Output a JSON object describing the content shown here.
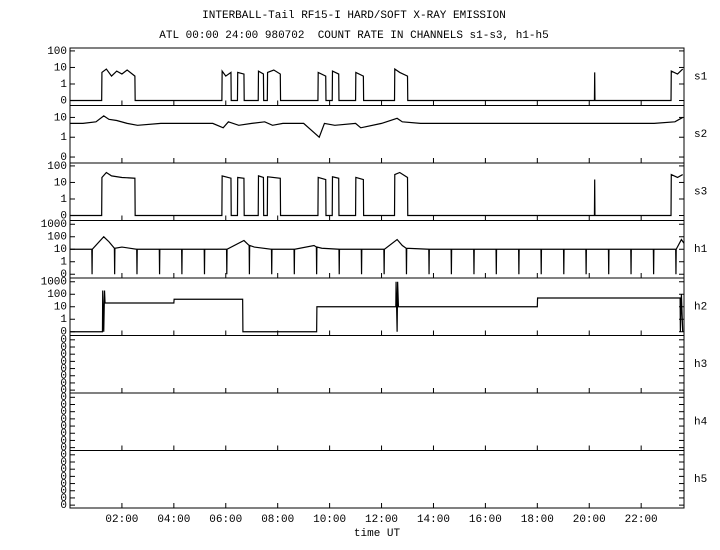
{
  "chart_data": {
    "type": "stacked_panels",
    "title": "INTERBALL-Tail RF15-I HARD/SOFT X-RAY EMISSION",
    "subtitle": "ATL 00:00 24:00 980702  COUNT RATE IN CHANNELS s1-s3, h1-h5",
    "xlabel": "time UT",
    "xlim": [
      0,
      23.65
    ],
    "xticks": [
      {
        "value": 2,
        "label": "02:00"
      },
      {
        "value": 4,
        "label": "04:00"
      },
      {
        "value": 6,
        "label": "06:00"
      },
      {
        "value": 8,
        "label": "08:00"
      },
      {
        "value": 10,
        "label": "10:00"
      },
      {
        "value": 12,
        "label": "12:00"
      },
      {
        "value": 14,
        "label": "14:00"
      },
      {
        "value": 16,
        "label": "16:00"
      },
      {
        "value": 18,
        "label": "18:00"
      },
      {
        "value": 20,
        "label": "20:00"
      },
      {
        "value": 22,
        "label": "22:00"
      }
    ],
    "color": "#000000",
    "panels": [
      {
        "label": "s1",
        "log": true,
        "ylim": [
          0.05,
          150
        ],
        "yticks": [
          {
            "value": 0.1,
            "label": "0"
          },
          1,
          10,
          100
        ],
        "x": [
          0,
          1.22,
          1.23,
          1.4,
          1.6,
          1.8,
          2.0,
          2.2,
          2.5,
          2.51,
          5.85,
          5.86,
          6.0,
          6.2,
          6.21,
          6.45,
          6.46,
          6.7,
          6.71,
          7.25,
          7.26,
          7.45,
          7.46,
          7.6,
          7.61,
          7.85,
          8.1,
          8.11,
          9.55,
          9.56,
          9.85,
          9.86,
          10.1,
          10.11,
          10.35,
          10.36,
          11.0,
          11.01,
          11.3,
          11.31,
          12.5,
          12.51,
          12.7,
          13.0,
          13.01,
          20.2,
          20.21,
          20.22,
          23.15,
          23.16,
          23.4,
          23.6
        ],
        "values": [
          0.1,
          0.1,
          5,
          8,
          3,
          6,
          4,
          7,
          3,
          0.1,
          0.1,
          6,
          3,
          5,
          0.1,
          0.1,
          5,
          4,
          0.1,
          0.1,
          6,
          4,
          0.1,
          0.1,
          5,
          7,
          4,
          0.1,
          0.1,
          5,
          3,
          0.1,
          0.1,
          6,
          4,
          0.1,
          0.1,
          5,
          3,
          0.1,
          0.1,
          8,
          5,
          3,
          0.1,
          0.1,
          5,
          0.1,
          0.1,
          6,
          4,
          8
        ]
      },
      {
        "label": "s2",
        "log": true,
        "ylim": [
          0.05,
          40
        ],
        "yticks": [
          {
            "value": 0.1,
            "label": "0"
          },
          1,
          10
        ],
        "x": [
          0,
          0.5,
          1.0,
          1.3,
          1.5,
          1.8,
          2.2,
          2.6,
          3.5,
          4.5,
          5.5,
          5.9,
          6.1,
          6.5,
          7.0,
          7.5,
          7.8,
          8.2,
          9.0,
          9.6,
          9.8,
          10.2,
          11.0,
          11.2,
          12.0,
          12.6,
          12.8,
          13.5,
          15,
          17,
          19,
          21,
          22.5,
          23.3,
          23.6
        ],
        "values": [
          5,
          5,
          6,
          12,
          8,
          7,
          5,
          4,
          5,
          5,
          5,
          3,
          6,
          4,
          5,
          6,
          4,
          5,
          5,
          1,
          5,
          4,
          5,
          3,
          5,
          9,
          6,
          5,
          5,
          5,
          5,
          5,
          5,
          6,
          10
        ]
      },
      {
        "label": "s3",
        "log": true,
        "ylim": [
          0.05,
          150
        ],
        "yticks": [
          {
            "value": 0.1,
            "label": "0"
          },
          1,
          10,
          100
        ],
        "x": [
          0,
          1.22,
          1.23,
          1.4,
          1.6,
          2.0,
          2.5,
          2.51,
          5.85,
          5.86,
          6.2,
          6.21,
          6.45,
          6.46,
          6.7,
          6.71,
          7.25,
          7.26,
          7.45,
          7.46,
          7.6,
          7.61,
          8.1,
          8.11,
          9.55,
          9.56,
          9.85,
          9.86,
          10.1,
          10.11,
          10.35,
          10.36,
          11.0,
          11.01,
          11.3,
          11.31,
          12.5,
          12.51,
          12.7,
          13.0,
          13.01,
          20.2,
          20.21,
          20.22,
          23.15,
          23.16,
          23.4,
          23.6
        ],
        "values": [
          0.1,
          0.1,
          20,
          40,
          25,
          20,
          18,
          0.1,
          0.1,
          25,
          18,
          0.1,
          0.1,
          20,
          18,
          0.1,
          0.1,
          25,
          20,
          0.1,
          0.1,
          22,
          18,
          0.1,
          0.1,
          20,
          15,
          0.1,
          0.1,
          22,
          18,
          0.1,
          0.1,
          20,
          15,
          0.1,
          0.1,
          30,
          40,
          20,
          0.1,
          0.1,
          15,
          0.1,
          0.1,
          30,
          20,
          30
        ]
      },
      {
        "label": "h1",
        "log": true,
        "ylim": [
          0.05,
          2000
        ],
        "yticks": [
          {
            "value": 0.1,
            "label": "0"
          },
          1,
          10,
          100,
          1000
        ],
        "x": [
          0,
          0.84,
          0.85,
          0.86,
          1.3,
          1.5,
          1.71,
          1.72,
          1.73,
          2.0,
          2.57,
          2.58,
          2.59,
          3.44,
          3.45,
          3.46,
          4.3,
          4.31,
          4.32,
          5.17,
          5.18,
          5.19,
          6.03,
          6.04,
          6.05,
          6.7,
          6.9,
          6.91,
          6.92,
          7.1,
          7.76,
          7.77,
          7.78,
          8.63,
          8.64,
          8.65,
          9.4,
          9.49,
          9.5,
          9.51,
          9.7,
          10.36,
          10.37,
          10.38,
          11.22,
          11.23,
          11.24,
          12.09,
          12.1,
          12.11,
          12.6,
          12.8,
          12.95,
          12.96,
          12.97,
          13.82,
          13.83,
          13.84,
          14.68,
          14.69,
          14.7,
          15.55,
          15.56,
          15.57,
          16.41,
          16.42,
          16.43,
          17.28,
          17.29,
          17.3,
          18.14,
          18.15,
          18.16,
          19.01,
          19.02,
          19.03,
          19.87,
          19.88,
          19.89,
          20.74,
          20.75,
          20.76,
          21.6,
          21.61,
          21.62,
          22.47,
          22.48,
          22.49,
          23.33,
          23.34,
          23.35,
          23.55,
          23.65
        ],
        "values": [
          10,
          10,
          0.1,
          10,
          100,
          40,
          12,
          0.1,
          12,
          15,
          10,
          0.1,
          10,
          10,
          0.1,
          10,
          10,
          0.1,
          10,
          10,
          0.1,
          10,
          10,
          0.1,
          10,
          50,
          20,
          0.1,
          20,
          15,
          10,
          0.1,
          10,
          10,
          0.1,
          10,
          20,
          15,
          0.1,
          15,
          12,
          10,
          0.1,
          10,
          10,
          0.1,
          10,
          10,
          0.1,
          10,
          60,
          20,
          12,
          0.1,
          12,
          10,
          0.1,
          10,
          10,
          0.1,
          10,
          10,
          0.1,
          10,
          10,
          0.1,
          10,
          10,
          0.1,
          10,
          10,
          0.1,
          10,
          10,
          0.1,
          10,
          10,
          0.1,
          10,
          10,
          0.1,
          10,
          10,
          0.1,
          10,
          10,
          0.1,
          10,
          10,
          0.1,
          10,
          60,
          30
        ]
      },
      {
        "label": "h2",
        "log": true,
        "ylim": [
          0.05,
          2000
        ],
        "yticks": [
          {
            "value": 0.1,
            "label": "0"
          },
          1,
          10,
          100,
          1000
        ],
        "x": [
          0,
          1.25,
          1.26,
          1.3,
          1.33,
          1.35,
          4.0,
          4.01,
          6.65,
          6.66,
          9.5,
          9.51,
          12.55,
          12.56,
          12.6,
          12.62,
          12.65,
          18.0,
          18.01,
          23.5,
          23.51,
          23.55,
          23.6
        ],
        "values": [
          0.1,
          0.1,
          200,
          0.1,
          200,
          20,
          20,
          40,
          40,
          0.1,
          0.1,
          10,
          10,
          1000,
          0.1,
          1000,
          10,
          10,
          50,
          50,
          0.1,
          100,
          0.1
        ]
      },
      {
        "label": "h3",
        "log": false,
        "ylim": [
          0,
          0.4
        ],
        "yticks": [
          {
            "value": 0.02,
            "label": "0"
          },
          {
            "value": 0.07,
            "label": "0"
          },
          {
            "value": 0.12,
            "label": "0"
          },
          {
            "value": 0.17,
            "label": "0"
          },
          {
            "value": 0.22,
            "label": "0"
          },
          {
            "value": 0.27,
            "label": "0"
          },
          {
            "value": 0.32,
            "label": "0"
          },
          {
            "value": 0.37,
            "label": "0"
          }
        ]
      },
      {
        "label": "h4",
        "log": false,
        "ylim": [
          0,
          0.4
        ],
        "yticks": [
          {
            "value": 0.02,
            "label": "0"
          },
          {
            "value": 0.07,
            "label": "0"
          },
          {
            "value": 0.12,
            "label": "0"
          },
          {
            "value": 0.17,
            "label": "0"
          },
          {
            "value": 0.22,
            "label": "0"
          },
          {
            "value": 0.27,
            "label": "0"
          },
          {
            "value": 0.32,
            "label": "0"
          },
          {
            "value": 0.37,
            "label": "0"
          }
        ]
      },
      {
        "label": "h5",
        "log": false,
        "ylim": [
          0,
          0.4
        ],
        "yticks": [
          {
            "value": 0.02,
            "label": "0"
          },
          {
            "value": 0.07,
            "label": "0"
          },
          {
            "value": 0.12,
            "label": "0"
          },
          {
            "value": 0.17,
            "label": "0"
          },
          {
            "value": 0.22,
            "label": "0"
          },
          {
            "value": 0.27,
            "label": "0"
          },
          {
            "value": 0.32,
            "label": "0"
          },
          {
            "value": 0.37,
            "label": "0"
          }
        ]
      }
    ]
  }
}
